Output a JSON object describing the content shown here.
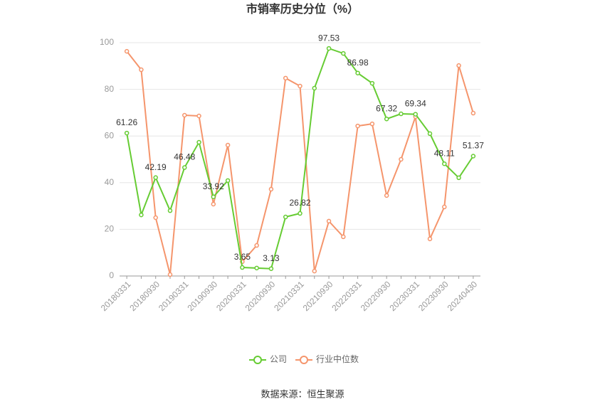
{
  "chart_data": {
    "type": "line",
    "title": "市销率历史分位（%）",
    "source": "数据来源：恒生聚源",
    "categories": [
      "20180331",
      null,
      "20180930",
      null,
      "20190331",
      null,
      "20190930",
      null,
      "20200331",
      null,
      "20200930",
      null,
      "20210331",
      null,
      "20210930",
      null,
      "20220331",
      null,
      "20220930",
      null,
      "20230331",
      null,
      "20230930",
      null,
      "20240430"
    ],
    "series": [
      {
        "name": "公司",
        "color": "#66cc33",
        "values": [
          61.26,
          26.2,
          42.19,
          28.0,
          46.48,
          57.3,
          33.92,
          40.9,
          3.65,
          3.4,
          3.13,
          25.3,
          26.82,
          80.5,
          97.53,
          95.4,
          86.98,
          82.6,
          67.32,
          69.5,
          69.34,
          61.0,
          48.11,
          42.1,
          51.37
        ],
        "value_labels": [
          "61.26",
          null,
          "42.19",
          null,
          "46.48",
          null,
          "33.92",
          null,
          "3.65",
          null,
          "3.13",
          null,
          "26.82",
          null,
          "97.53",
          null,
          "86.98",
          null,
          "67.32",
          null,
          "69.34",
          null,
          "48.11",
          null,
          "51.37"
        ]
      },
      {
        "name": "行业中位数",
        "color": "#f5956c",
        "values": [
          96.3,
          88.4,
          25.0,
          0.6,
          68.9,
          68.6,
          30.8,
          56.1,
          6.1,
          13.1,
          37.2,
          84.8,
          81.4,
          2.1,
          23.5,
          16.8,
          64.3,
          65.2,
          34.5,
          50.0,
          68.3,
          15.9,
          29.6,
          90.2,
          69.8
        ]
      }
    ],
    "ylim": [
      0,
      100
    ],
    "yticks": [
      0,
      20,
      40,
      60,
      80,
      100
    ],
    "grid": true,
    "legend": "bottom"
  }
}
